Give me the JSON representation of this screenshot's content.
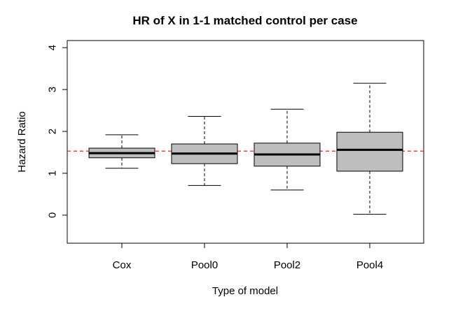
{
  "chart_data": {
    "type": "boxplot",
    "title": "HR of X in 1-1 matched control per case",
    "xlabel": "Type of model",
    "ylabel": "Hazard Ratio",
    "ylim": [
      -0.67,
      4.17
    ],
    "yticks": [
      "0",
      "1",
      "2",
      "3",
      "4"
    ],
    "grid": false,
    "categories": [
      "Cox",
      "Pool0",
      "Pool2",
      "Pool4"
    ],
    "boxes": [
      {
        "category": "Cox",
        "whisker_low": 1.12,
        "q1": 1.37,
        "median": 1.48,
        "q3": 1.6,
        "whisker_high": 1.92
      },
      {
        "category": "Pool0",
        "whisker_low": 0.71,
        "q1": 1.23,
        "median": 1.47,
        "q3": 1.7,
        "whisker_high": 2.36
      },
      {
        "category": "Pool2",
        "whisker_low": 0.6,
        "q1": 1.17,
        "median": 1.45,
        "q3": 1.72,
        "whisker_high": 2.53
      },
      {
        "category": "Pool4",
        "whisker_low": 0.02,
        "q1": 1.05,
        "median": 1.56,
        "q3": 1.98,
        "whisker_high": 3.15
      }
    ],
    "reference_line": {
      "y": 1.53,
      "color": "#ff0000",
      "style": "dashed"
    },
    "box_fill": "#bebebe"
  }
}
